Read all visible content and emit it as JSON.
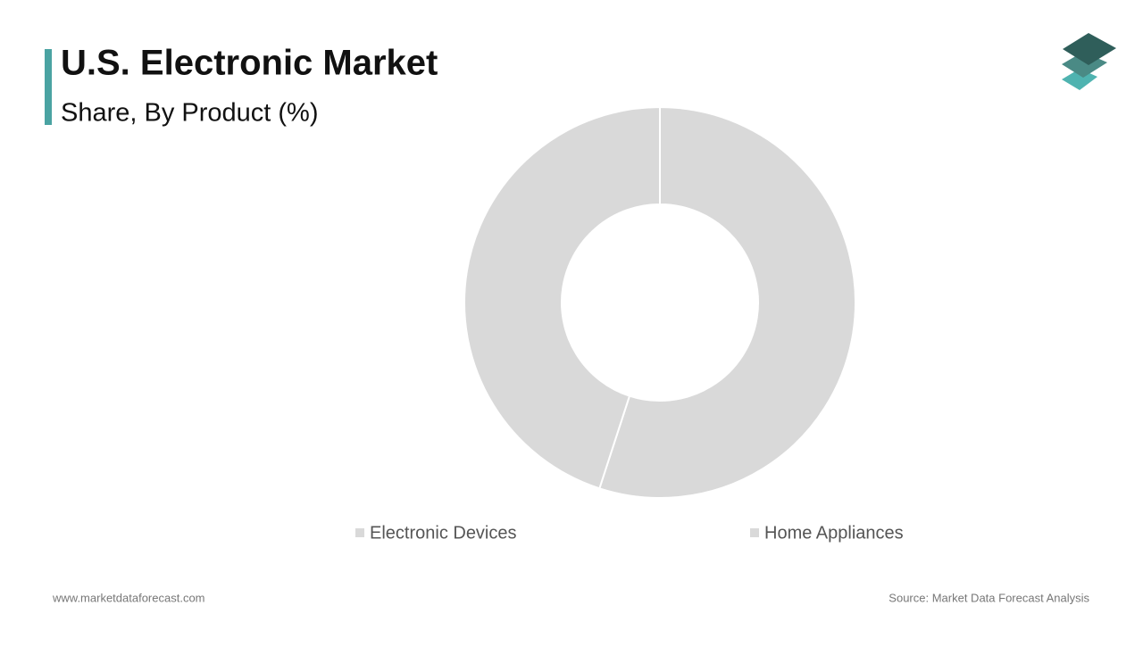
{
  "header": {
    "title": "U.S. Electronic Market",
    "subtitle": "Share, By Product (%)"
  },
  "chart_data": {
    "type": "pie",
    "categories": [
      "Electronic Devices",
      "Home Appliances"
    ],
    "values": [
      55,
      45
    ],
    "colors": [
      "#d9d9d9",
      "#d9d9d9"
    ]
  },
  "footer": {
    "website": "www.marketdataforecast.com",
    "source": "Source: Market Data Forecast Analysis"
  }
}
